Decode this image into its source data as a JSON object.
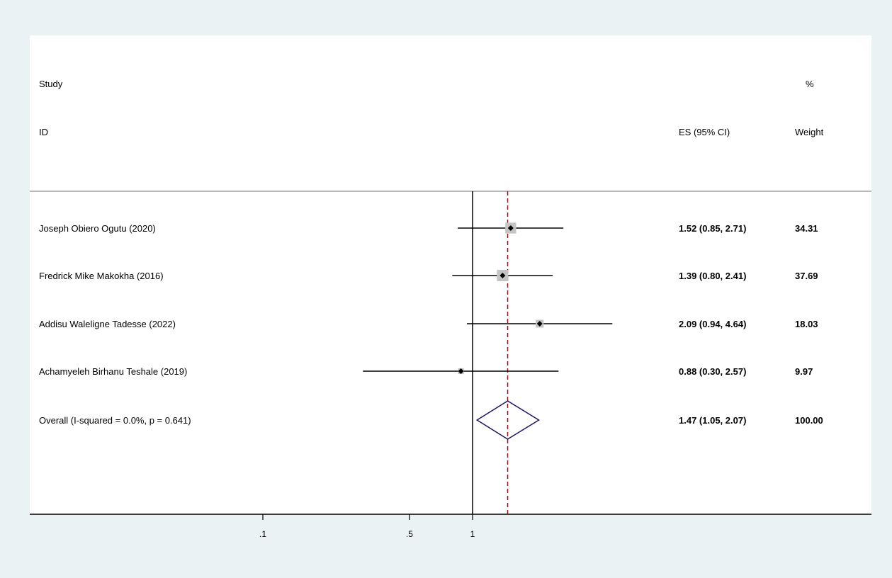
{
  "header": {
    "study_line1": "Study",
    "study_line2": "ID",
    "es_label": "ES (95% CI)",
    "weight_line1": "%",
    "weight_line2": "Weight"
  },
  "chart_data": {
    "type": "forest",
    "scale": "log",
    "null_line": 1,
    "overall_line": 1.47,
    "xticks": [
      0.1,
      0.5,
      1
    ],
    "xtick_labels": [
      ".1",
      ".5",
      "1"
    ],
    "xlim": [
      0.08,
      5.5
    ],
    "studies": [
      {
        "label": "Joseph Obiero Ogutu (2020)",
        "es": 1.52,
        "lo": 0.85,
        "hi": 2.71,
        "es_text": "1.52 (0.85, 2.71)",
        "weight": 34.31,
        "weight_text": "34.31"
      },
      {
        "label": "Fredrick Mike Makokha (2016)",
        "es": 1.39,
        "lo": 0.8,
        "hi": 2.41,
        "es_text": "1.39 (0.80, 2.41)",
        "weight": 37.69,
        "weight_text": "37.69"
      },
      {
        "label": "Addisu Waleligne Tadesse (2022)",
        "es": 2.09,
        "lo": 0.94,
        "hi": 4.64,
        "es_text": "2.09 (0.94, 4.64)",
        "weight": 18.03,
        "weight_text": "18.03"
      },
      {
        "label": "Achamyeleh Birhanu Teshale (2019)",
        "es": 0.88,
        "lo": 0.3,
        "hi": 2.57,
        "es_text": "0.88 (0.30, 2.57)",
        "weight": 9.97,
        "weight_text": "9.97"
      }
    ],
    "overall": {
      "label": "Overall  (I-squared = 0.0%, p = 0.641)",
      "es": 1.47,
      "lo": 1.05,
      "hi": 2.07,
      "es_text": "1.47 (1.05, 2.07)",
      "weight_text": "100.00"
    },
    "colors": {
      "background": "#eaf2f3",
      "plot": "#ffffff",
      "marker_box": "#c4c4c4",
      "diamond": "#1b1464",
      "overall_line": "#8b1a1a"
    }
  }
}
